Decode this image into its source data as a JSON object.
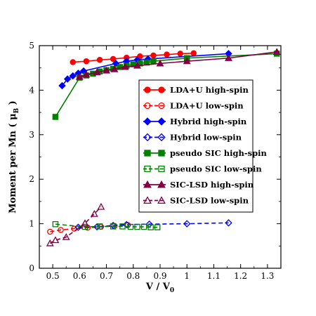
{
  "chart_data": {
    "type": "line",
    "title": "",
    "xlabel_main": "V / V",
    "xlabel_sub": "0",
    "ylabel_main": "Moment  per Mn ( μ",
    "ylabel_sub": "B",
    "ylabel_close": " )",
    "xlim": [
      0.45,
      1.35
    ],
    "ylim": [
      0,
      5
    ],
    "xticks": [
      0.5,
      0.6,
      0.7,
      0.8,
      0.9,
      1.0,
      1.1,
      1.2,
      1.3
    ],
    "xtick_labels": [
      "0.5",
      "0.6",
      "0.7",
      "0.8",
      "0.9",
      "1",
      "1.1",
      "1.2",
      "1.3"
    ],
    "yticks": [
      0,
      1,
      2,
      3,
      4,
      5
    ],
    "ytick_labels": [
      "0",
      "1",
      "2",
      "3",
      "4",
      "5"
    ],
    "legend_position": "right-center",
    "series": [
      {
        "name": "LDA+U high-spin",
        "color": "#ff0000",
        "marker": "circle",
        "filled": true,
        "dashed": false,
        "x": [
          0.575,
          0.625,
          0.675,
          0.725,
          0.775,
          0.825,
          0.875,
          0.925,
          0.975,
          1.025
        ],
        "y": [
          4.63,
          4.65,
          4.68,
          4.7,
          4.73,
          4.76,
          4.78,
          4.8,
          4.82,
          4.83
        ]
      },
      {
        "name": "LDA+U low-spin",
        "color": "#ff0000",
        "marker": "circle",
        "filled": false,
        "dashed": true,
        "x": [
          0.49,
          0.53,
          0.58,
          0.63,
          0.68,
          0.73,
          0.78
        ],
        "y": [
          0.82,
          0.86,
          0.89,
          0.91,
          0.93,
          0.95,
          0.97
        ]
      },
      {
        "name": "Hybrid high-spin",
        "color": "#0000ff",
        "marker": "diamond",
        "filled": true,
        "dashed": false,
        "x": [
          0.535,
          0.555,
          0.575,
          0.595,
          0.615,
          0.735,
          0.775,
          0.815,
          0.855,
          1.155
        ],
        "y": [
          4.1,
          4.25,
          4.32,
          4.38,
          4.43,
          4.6,
          4.65,
          4.68,
          4.7,
          4.82
        ]
      },
      {
        "name": "Hybrid low-spin",
        "color": "#0000ff",
        "marker": "diamond",
        "filled": false,
        "dashed": true,
        "x": [
          0.595,
          0.665,
          0.725,
          0.775,
          0.86,
          1.0,
          1.155
        ],
        "y": [
          0.92,
          0.93,
          0.96,
          0.98,
          0.99,
          1.0,
          1.02
        ]
      },
      {
        "name": "pseudo SIC high-spin",
        "color": "#008000",
        "marker": "square",
        "filled": true,
        "dashed": false,
        "x": [
          0.51,
          0.6,
          0.625,
          0.65,
          0.675,
          0.7,
          0.725,
          0.75,
          0.775,
          0.8,
          0.825,
          0.85,
          0.875,
          1.0,
          1.335
        ],
        "y": [
          3.4,
          4.28,
          4.33,
          4.37,
          4.42,
          4.45,
          4.48,
          4.52,
          4.55,
          4.58,
          4.6,
          4.62,
          4.65,
          4.72,
          4.82
        ]
      },
      {
        "name": "pseudo SIC low-spin",
        "color": "#008000",
        "marker": "square",
        "filled": false,
        "dashed": true,
        "x": [
          0.51,
          0.62,
          0.675,
          0.725,
          0.76,
          0.79,
          0.815,
          0.84,
          0.865,
          0.89
        ],
        "y": [
          0.99,
          0.93,
          0.94,
          0.94,
          0.94,
          0.93,
          0.93,
          0.93,
          0.92,
          0.92
        ]
      },
      {
        "name": "SIC-LSD high-spin",
        "color": "#800040",
        "marker": "triangle",
        "filled": true,
        "dashed": false,
        "x": [
          0.6,
          0.625,
          0.665,
          0.7,
          0.73,
          0.77,
          0.815,
          0.9,
          1.0,
          1.155,
          1.335
        ],
        "y": [
          4.3,
          4.35,
          4.4,
          4.44,
          4.47,
          4.52,
          4.55,
          4.6,
          4.65,
          4.72,
          4.86
        ]
      },
      {
        "name": "SIC-LSD low-spin",
        "color": "#800040",
        "marker": "triangle",
        "filled": false,
        "dashed": true,
        "x": [
          0.49,
          0.51,
          0.55,
          0.62,
          0.655,
          0.68
        ],
        "y": [
          0.56,
          0.63,
          0.7,
          1.01,
          1.22,
          1.38
        ]
      }
    ]
  }
}
